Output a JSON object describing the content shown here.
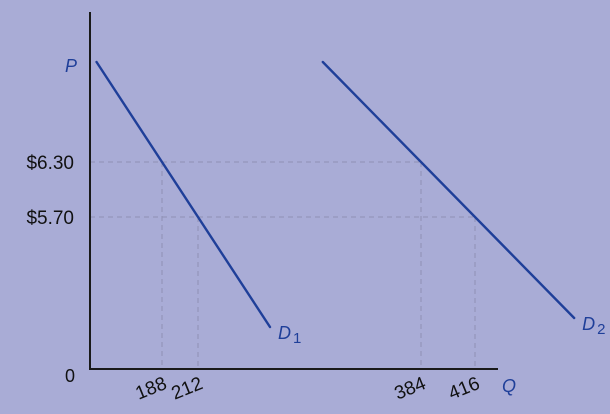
{
  "chart_data": {
    "type": "line",
    "title": "",
    "xlabel": "Q",
    "ylabel": "P",
    "origin_label": "0",
    "grid": false,
    "price_ticks": [
      {
        "value": 6.3,
        "label": "$6.30"
      },
      {
        "value": 5.7,
        "label": "$5.70"
      }
    ],
    "quantity_ticks": [
      {
        "value": 188,
        "label": "188"
      },
      {
        "value": 212,
        "label": "212"
      },
      {
        "value": 384,
        "label": "384"
      },
      {
        "value": 416,
        "label": "416"
      }
    ],
    "series": [
      {
        "name": "D",
        "subscript": "1",
        "color": "#1f3f99",
        "points": [
          {
            "q": 188,
            "p": 6.3
          },
          {
            "q": 212,
            "p": 5.7
          }
        ]
      },
      {
        "name": "D",
        "subscript": "2",
        "color": "#1f3f99",
        "points": [
          {
            "q": 384,
            "p": 6.3
          },
          {
            "q": 416,
            "p": 5.7
          }
        ]
      }
    ]
  }
}
